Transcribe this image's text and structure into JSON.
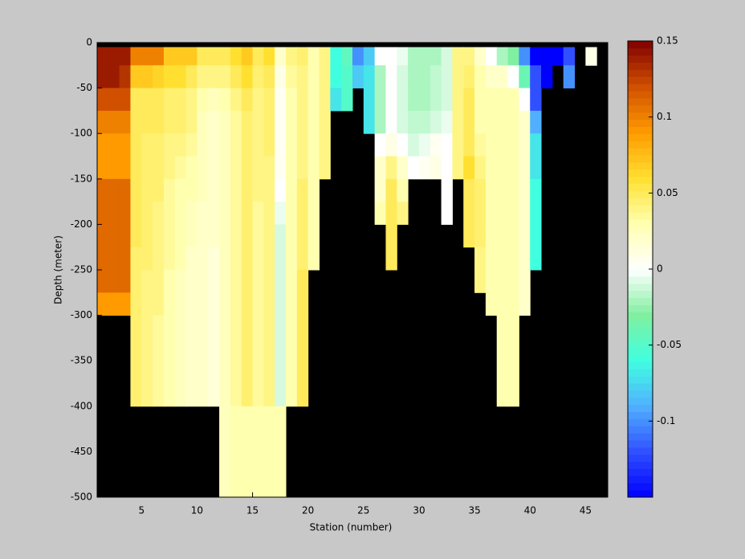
{
  "chart_data": {
    "type": "heatmap",
    "xlabel": "Station (number)",
    "ylabel": "Depth (meter)",
    "x_edges": [
      1,
      2,
      3,
      4,
      5,
      6,
      7,
      8,
      9,
      10,
      11,
      12,
      13,
      14,
      15,
      16,
      17,
      18,
      19,
      20,
      21,
      22,
      23,
      24,
      25,
      26,
      27,
      28,
      29,
      30,
      31,
      32,
      33,
      34,
      35,
      36,
      37,
      38,
      39,
      40,
      41,
      42,
      43,
      44,
      45,
      46,
      47
    ],
    "y_edges": [
      0,
      -5,
      -25,
      -50,
      -75,
      -100,
      -125,
      -150,
      -175,
      -200,
      -225,
      -250,
      -275,
      -300,
      -400,
      -500
    ],
    "z": [
      [
        null,
        0.14,
        0.14,
        0.12,
        0.1,
        0.09,
        0.09,
        0.11,
        0.11,
        0.11,
        0.11,
        0.11,
        0.09,
        null,
        null
      ],
      [
        null,
        0.14,
        0.14,
        0.12,
        0.1,
        0.09,
        0.09,
        0.11,
        0.11,
        0.11,
        0.11,
        0.11,
        0.09,
        null,
        null
      ],
      [
        null,
        0.14,
        0.13,
        0.12,
        0.1,
        0.09,
        0.09,
        0.11,
        0.11,
        0.11,
        0.11,
        0.11,
        0.09,
        null,
        null
      ],
      [
        null,
        0.1,
        0.07,
        0.05,
        0.05,
        0.05,
        0.05,
        0.05,
        0.05,
        0.05,
        0.045,
        0.045,
        0.045,
        0.045,
        null
      ],
      [
        null,
        0.1,
        0.07,
        0.05,
        0.05,
        0.045,
        0.045,
        0.045,
        0.045,
        0.045,
        0.045,
        0.04,
        0.04,
        0.04,
        null
      ],
      [
        null,
        0.1,
        0.065,
        0.05,
        0.05,
        0.045,
        0.045,
        0.045,
        0.04,
        0.04,
        0.04,
        0.04,
        0.04,
        0.035,
        null
      ],
      [
        null,
        0.07,
        0.06,
        0.045,
        0.045,
        0.04,
        0.04,
        0.035,
        0.035,
        0.035,
        0.035,
        0.03,
        0.03,
        0.03,
        null
      ],
      [
        null,
        0.07,
        0.06,
        0.045,
        0.045,
        0.04,
        0.035,
        0.03,
        0.03,
        0.03,
        0.03,
        0.025,
        0.025,
        0.025,
        null
      ],
      [
        null,
        0.07,
        0.05,
        0.04,
        0.04,
        0.035,
        0.03,
        0.03,
        0.025,
        0.025,
        0.02,
        0.02,
        0.02,
        0.02,
        null
      ],
      [
        null,
        0.05,
        0.04,
        0.03,
        0.025,
        0.025,
        0.025,
        0.025,
        0.02,
        0.02,
        0.02,
        0.02,
        0.02,
        0.02,
        null
      ],
      [
        null,
        0.05,
        0.04,
        0.025,
        0.02,
        0.02,
        0.02,
        0.02,
        0.02,
        0.02,
        0.015,
        0.015,
        0.015,
        0.015,
        null
      ],
      [
        null,
        0.05,
        0.04,
        0.03,
        0.025,
        0.025,
        0.025,
        0.025,
        0.025,
        0.025,
        0.025,
        0.025,
        0.025,
        0.025,
        0.025
      ],
      [
        null,
        0.06,
        0.05,
        0.04,
        0.035,
        0.035,
        0.035,
        0.035,
        0.035,
        0.035,
        0.035,
        0.035,
        0.035,
        0.035,
        0.03
      ],
      [
        null,
        0.07,
        0.06,
        0.05,
        0.045,
        0.045,
        0.045,
        0.045,
        0.045,
        0.045,
        0.045,
        0.045,
        0.045,
        0.045,
        0.03
      ],
      [
        null,
        0.05,
        0.045,
        0.04,
        0.04,
        0.04,
        0.04,
        0.04,
        0.035,
        0.035,
        0.035,
        0.035,
        0.035,
        0.035,
        0.03
      ],
      [
        null,
        0.06,
        0.05,
        0.045,
        0.045,
        0.045,
        0.04,
        0.04,
        0.04,
        0.04,
        0.04,
        0.04,
        0.04,
        0.04,
        0.03
      ],
      [
        null,
        0.02,
        0.01,
        0.005,
        0.005,
        0.005,
        0.005,
        0.0,
        -0.005,
        -0.01,
        -0.01,
        -0.01,
        -0.01,
        -0.01,
        0.03
      ],
      [
        null,
        0.04,
        0.035,
        0.03,
        0.03,
        0.03,
        0.03,
        0.03,
        0.03,
        0.03,
        0.03,
        0.03,
        0.03,
        0.03,
        null
      ],
      [
        null,
        0.045,
        0.04,
        0.04,
        0.04,
        0.04,
        0.04,
        0.045,
        0.045,
        0.045,
        0.045,
        0.05,
        0.05,
        0.05,
        null
      ],
      [
        null,
        0.03,
        0.03,
        0.03,
        0.03,
        0.03,
        0.03,
        0.03,
        0.03,
        0.03,
        0.03,
        null,
        null,
        null,
        null
      ],
      [
        null,
        0.04,
        0.04,
        0.04,
        0.04,
        0.04,
        0.04,
        null,
        null,
        null,
        null,
        null,
        null,
        null,
        null
      ],
      [
        null,
        -0.06,
        -0.06,
        -0.07,
        null,
        null,
        null,
        null,
        null,
        null,
        null,
        null,
        null,
        null,
        null
      ],
      [
        null,
        -0.045,
        -0.05,
        -0.05,
        null,
        null,
        null,
        null,
        null,
        null,
        null,
        null,
        null,
        null,
        null
      ],
      [
        null,
        -0.1,
        -0.08,
        null,
        null,
        null,
        null,
        null,
        null,
        null,
        null,
        null,
        null,
        null,
        null
      ],
      [
        null,
        -0.08,
        -0.07,
        -0.07,
        -0.07,
        null,
        null,
        null,
        null,
        null,
        null,
        null,
        null,
        null,
        null
      ],
      [
        null,
        0.0,
        -0.02,
        -0.02,
        -0.02,
        0.0,
        0.02,
        0.02,
        0.03,
        null,
        null,
        null,
        null,
        null,
        null
      ],
      [
        null,
        0.0,
        0.0,
        0.0,
        0.0,
        0.01,
        0.04,
        0.05,
        0.05,
        0.05,
        0.05,
        null,
        null,
        null,
        null
      ],
      [
        null,
        -0.005,
        -0.01,
        -0.01,
        -0.01,
        0.0,
        0.02,
        0.03,
        0.04,
        null,
        null,
        null,
        null,
        null,
        null
      ],
      [
        null,
        -0.02,
        -0.02,
        -0.02,
        -0.015,
        -0.01,
        0.0,
        null,
        null,
        null,
        null,
        null,
        null,
        null,
        null
      ],
      [
        null,
        -0.02,
        -0.02,
        -0.02,
        -0.015,
        -0.005,
        0.005,
        null,
        null,
        null,
        null,
        null,
        null,
        null,
        null
      ],
      [
        null,
        -0.02,
        -0.015,
        -0.015,
        -0.01,
        0.005,
        0.01,
        null,
        null,
        null,
        null,
        null,
        null,
        null,
        null
      ],
      [
        null,
        -0.01,
        -0.01,
        -0.01,
        -0.005,
        0.0,
        0.0,
        0.0,
        0.0,
        null,
        null,
        null,
        null,
        null,
        null
      ],
      [
        null,
        0.04,
        0.04,
        0.04,
        0.04,
        0.04,
        0.04,
        null,
        null,
        null,
        null,
        null,
        null,
        null,
        null
      ],
      [
        null,
        0.04,
        0.045,
        0.05,
        0.05,
        0.05,
        0.06,
        0.05,
        0.05,
        0.05,
        null,
        null,
        null,
        null,
        null
      ],
      [
        null,
        0.02,
        0.03,
        0.03,
        0.03,
        0.035,
        0.04,
        0.045,
        0.045,
        0.045,
        0.04,
        0.04,
        null,
        null,
        null
      ],
      [
        null,
        0.0,
        0.02,
        0.03,
        0.03,
        0.03,
        0.03,
        0.03,
        0.03,
        0.03,
        0.03,
        0.03,
        0.03,
        null,
        null
      ],
      [
        null,
        -0.02,
        0.02,
        0.03,
        0.03,
        0.03,
        0.03,
        0.03,
        0.03,
        0.03,
        0.03,
        0.03,
        0.03,
        0.03,
        null
      ],
      [
        null,
        -0.03,
        0.0,
        0.03,
        0.03,
        0.03,
        0.03,
        0.03,
        0.03,
        0.03,
        0.03,
        0.03,
        0.03,
        0.03,
        null
      ],
      [
        null,
        -0.1,
        -0.04,
        0.0,
        0.02,
        0.02,
        0.02,
        0.02,
        0.02,
        0.02,
        0.02,
        0.02,
        0.02,
        null,
        null
      ],
      [
        null,
        -0.15,
        -0.12,
        -0.12,
        -0.09,
        -0.07,
        -0.07,
        -0.06,
        -0.06,
        -0.06,
        -0.06,
        null,
        null,
        null,
        null
      ],
      [
        null,
        -0.15,
        -0.15,
        null,
        null,
        null,
        null,
        null,
        null,
        null,
        null,
        null,
        null,
        null,
        null
      ],
      [
        null,
        -0.15,
        null,
        null,
        null,
        null,
        null,
        null,
        null,
        null,
        null,
        null,
        null,
        null,
        null
      ],
      [
        null,
        -0.12,
        -0.1,
        null,
        null,
        null,
        null,
        null,
        null,
        null,
        null,
        null,
        null,
        null,
        null
      ],
      [
        null,
        null,
        null,
        null,
        null,
        null,
        null,
        null,
        null,
        null,
        null,
        null,
        null,
        null,
        null
      ],
      [
        null,
        0.01,
        null,
        null,
        null,
        null,
        null,
        null,
        null,
        null,
        null,
        null,
        null,
        null,
        null
      ],
      [
        null,
        null,
        null,
        null,
        null,
        null,
        null,
        null,
        null,
        null,
        null,
        null,
        null,
        null,
        null
      ]
    ],
    "xlim": [
      1,
      47
    ],
    "xticks": [
      5,
      10,
      15,
      20,
      25,
      30,
      35,
      40,
      45
    ],
    "ylim": [
      -500,
      0
    ],
    "yticks": [
      0,
      -50,
      -100,
      -150,
      -200,
      -250,
      -300,
      -350,
      -400,
      -450,
      -500
    ],
    "clim": [
      -0.15,
      0.15
    ],
    "cticks": [
      0.15,
      0.1,
      0.05,
      0,
      -0.05,
      -0.1
    ],
    "colormap": [
      "#0000ff",
      "#3050ff",
      "#50b0ff",
      "#40ffe0",
      "#80f0a0",
      "#ffffff",
      "#ffffb0",
      "#ffe030",
      "#ff9a00",
      "#d05000",
      "#800000"
    ],
    "missing_color": "#000000"
  }
}
